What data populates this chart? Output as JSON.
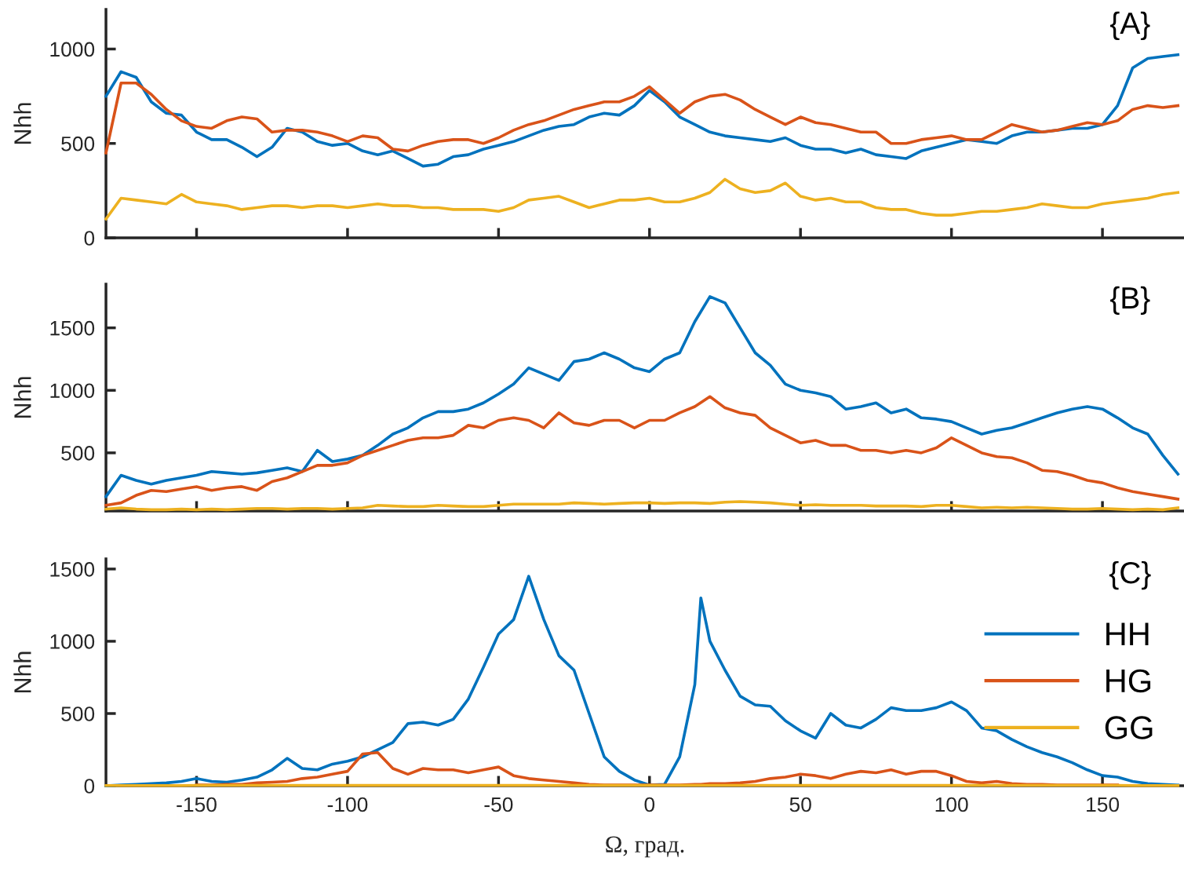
{
  "chart_data": [
    {
      "type": "line",
      "ylabel": "Nhh",
      "annotations": [
        "{A}"
      ],
      "xlim": [
        -180,
        177
      ],
      "ylim": [
        0,
        1210
      ],
      "xticks": [
        -150,
        -100,
        -50,
        0,
        50,
        100,
        150
      ],
      "yticks": [
        0,
        500,
        1000
      ],
      "tick_labels": "y",
      "grid": false,
      "x": [
        -180,
        -175,
        -170,
        -165,
        -160,
        -155,
        -150,
        -145,
        -140,
        -135,
        -130,
        -125,
        -120,
        -115,
        -110,
        -105,
        -100,
        -95,
        -90,
        -85,
        -80,
        -75,
        -70,
        -65,
        -60,
        -55,
        -50,
        -45,
        -40,
        -35,
        -30,
        -25,
        -20,
        -15,
        -10,
        -5,
        0,
        5,
        10,
        15,
        20,
        25,
        30,
        35,
        40,
        45,
        50,
        55,
        60,
        65,
        70,
        75,
        80,
        85,
        90,
        95,
        100,
        105,
        110,
        115,
        120,
        125,
        130,
        135,
        140,
        145,
        150,
        155,
        160,
        165,
        170,
        175
      ],
      "series": [
        {
          "color": "#0072bd",
          "values": [
            750,
            880,
            850,
            720,
            660,
            650,
            560,
            520,
            520,
            480,
            430,
            480,
            580,
            560,
            510,
            490,
            500,
            460,
            440,
            460,
            420,
            380,
            390,
            430,
            440,
            470,
            490,
            510,
            540,
            570,
            590,
            600,
            640,
            660,
            650,
            700,
            780,
            720,
            640,
            600,
            560,
            540,
            530,
            520,
            510,
            530,
            490,
            470,
            470,
            450,
            470,
            440,
            430,
            420,
            460,
            480,
            500,
            520,
            510,
            500,
            540,
            560,
            560,
            570,
            580,
            580,
            600,
            700,
            900,
            950,
            960,
            970
          ]
        },
        {
          "color": "#d95319",
          "values": [
            450,
            820,
            820,
            760,
            680,
            620,
            590,
            580,
            620,
            640,
            630,
            560,
            570,
            570,
            560,
            540,
            510,
            540,
            530,
            470,
            460,
            490,
            510,
            520,
            520,
            500,
            530,
            570,
            600,
            620,
            650,
            680,
            700,
            720,
            720,
            750,
            800,
            730,
            660,
            720,
            750,
            760,
            730,
            680,
            640,
            600,
            640,
            610,
            600,
            580,
            560,
            560,
            500,
            500,
            520,
            530,
            540,
            520,
            520,
            560,
            600,
            580,
            560,
            570,
            590,
            610,
            600,
            620,
            680,
            700,
            690,
            700
          ]
        },
        {
          "color": "#edb120",
          "values": [
            100,
            210,
            200,
            190,
            180,
            230,
            190,
            180,
            170,
            150,
            160,
            170,
            170,
            160,
            170,
            170,
            160,
            170,
            180,
            170,
            170,
            160,
            160,
            150,
            150,
            150,
            140,
            160,
            200,
            210,
            220,
            190,
            160,
            180,
            200,
            200,
            210,
            190,
            190,
            210,
            240,
            310,
            260,
            240,
            250,
            290,
            220,
            200,
            210,
            190,
            190,
            160,
            150,
            150,
            130,
            120,
            120,
            130,
            140,
            140,
            150,
            160,
            180,
            170,
            160,
            160,
            180,
            190,
            200,
            210,
            230,
            240
          ]
        }
      ]
    },
    {
      "type": "line",
      "ylabel": "Nhh",
      "annotations": [
        "{B}"
      ],
      "xlim": [
        -180,
        177
      ],
      "ylim": [
        35,
        1850
      ],
      "xticks": [
        -150,
        -100,
        -50,
        0,
        50,
        100,
        150
      ],
      "yticks": [
        500,
        1000,
        1500
      ],
      "tick_labels": "y",
      "grid": false,
      "x": [
        -180,
        -175,
        -170,
        -165,
        -160,
        -155,
        -150,
        -145,
        -140,
        -135,
        -130,
        -125,
        -120,
        -115,
        -110,
        -105,
        -100,
        -95,
        -90,
        -85,
        -80,
        -75,
        -70,
        -65,
        -60,
        -55,
        -50,
        -45,
        -40,
        -35,
        -30,
        -25,
        -20,
        -15,
        -10,
        -5,
        0,
        5,
        10,
        15,
        20,
        25,
        30,
        35,
        40,
        45,
        50,
        55,
        60,
        65,
        70,
        75,
        80,
        85,
        90,
        95,
        100,
        105,
        110,
        115,
        120,
        125,
        130,
        135,
        140,
        145,
        150,
        155,
        160,
        165,
        170,
        175
      ],
      "series": [
        {
          "color": "#0072bd",
          "values": [
            150,
            320,
            280,
            250,
            280,
            300,
            320,
            350,
            340,
            330,
            340,
            360,
            380,
            350,
            520,
            430,
            450,
            480,
            560,
            650,
            700,
            780,
            830,
            830,
            850,
            900,
            970,
            1050,
            1180,
            1130,
            1080,
            1230,
            1250,
            1300,
            1250,
            1180,
            1150,
            1250,
            1300,
            1550,
            1750,
            1700,
            1500,
            1300,
            1200,
            1050,
            1000,
            980,
            950,
            850,
            870,
            900,
            820,
            850,
            780,
            770,
            750,
            700,
            650,
            680,
            700,
            740,
            780,
            820,
            850,
            870,
            850,
            780,
            700,
            650,
            480,
            330
          ]
        },
        {
          "color": "#d95319",
          "values": [
            80,
            100,
            160,
            200,
            190,
            210,
            230,
            200,
            220,
            230,
            200,
            270,
            300,
            350,
            400,
            400,
            420,
            480,
            520,
            560,
            600,
            620,
            620,
            640,
            720,
            700,
            760,
            780,
            760,
            700,
            820,
            740,
            720,
            760,
            760,
            700,
            760,
            760,
            820,
            870,
            950,
            860,
            820,
            800,
            700,
            640,
            580,
            600,
            560,
            560,
            520,
            520,
            500,
            520,
            500,
            540,
            620,
            560,
            500,
            470,
            460,
            420,
            360,
            350,
            320,
            280,
            260,
            220,
            190,
            170,
            150,
            130
          ]
        },
        {
          "color": "#edb120",
          "values": [
            50,
            60,
            50,
            45,
            45,
            50,
            45,
            50,
            45,
            50,
            55,
            55,
            50,
            55,
            55,
            50,
            55,
            60,
            80,
            75,
            70,
            70,
            80,
            75,
            70,
            70,
            80,
            90,
            90,
            90,
            90,
            100,
            95,
            90,
            95,
            100,
            100,
            95,
            100,
            100,
            95,
            105,
            110,
            105,
            100,
            90,
            80,
            85,
            80,
            80,
            80,
            75,
            75,
            75,
            70,
            80,
            80,
            70,
            60,
            65,
            60,
            65,
            60,
            55,
            50,
            50,
            55,
            50,
            45,
            50,
            45,
            60
          ]
        }
      ]
    },
    {
      "type": "line",
      "ylabel": "Nhh",
      "xlabel": "Ω, град.",
      "annotations": [
        "{C}"
      ],
      "xlim": [
        -180,
        177
      ],
      "ylim": [
        0,
        1570
      ],
      "xticks": [
        -150,
        -100,
        -50,
        0,
        50,
        100,
        150
      ],
      "yticks": [
        0,
        500,
        1000,
        1500
      ],
      "grid": false,
      "legend": "right",
      "x": [
        -180,
        -175,
        -170,
        -165,
        -160,
        -155,
        -150,
        -145,
        -140,
        -135,
        -130,
        -125,
        -120,
        -115,
        -110,
        -105,
        -100,
        -95,
        -90,
        -85,
        -80,
        -75,
        -70,
        -65,
        -60,
        -55,
        -50,
        -45,
        -40,
        -35,
        -30,
        -25,
        -20,
        -15,
        -10,
        -5,
        0,
        5,
        10,
        15,
        17,
        20,
        25,
        30,
        35,
        40,
        45,
        50,
        55,
        60,
        65,
        70,
        75,
        80,
        85,
        90,
        95,
        100,
        105,
        110,
        115,
        120,
        125,
        130,
        135,
        140,
        145,
        150,
        155,
        160,
        165,
        170,
        175
      ],
      "series": [
        {
          "name": "HH",
          "color": "#0072bd",
          "values": [
            0,
            5,
            10,
            15,
            20,
            30,
            50,
            30,
            25,
            40,
            60,
            110,
            190,
            120,
            110,
            150,
            170,
            200,
            250,
            300,
            430,
            440,
            420,
            460,
            600,
            820,
            1050,
            1150,
            1450,
            1150,
            900,
            800,
            500,
            200,
            100,
            40,
            5,
            10,
            200,
            700,
            1300,
            1000,
            800,
            620,
            560,
            550,
            450,
            380,
            330,
            500,
            420,
            400,
            460,
            540,
            520,
            520,
            540,
            580,
            520,
            400,
            380,
            320,
            270,
            230,
            200,
            160,
            110,
            70,
            60,
            30,
            15,
            10,
            5
          ]
        },
        {
          "name": "HG",
          "color": "#d95319",
          "values": [
            null,
            null,
            null,
            null,
            null,
            null,
            5,
            5,
            10,
            10,
            20,
            25,
            30,
            50,
            60,
            80,
            100,
            220,
            230,
            120,
            80,
            120,
            110,
            110,
            90,
            110,
            130,
            70,
            50,
            40,
            30,
            20,
            10,
            5,
            5,
            5,
            5,
            5,
            5,
            10,
            10,
            15,
            15,
            20,
            30,
            50,
            60,
            80,
            70,
            50,
            80,
            100,
            90,
            110,
            80,
            100,
            100,
            70,
            30,
            20,
            30,
            15,
            10,
            10,
            5,
            5,
            5,
            5,
            5,
            null,
            null,
            null,
            null
          ]
        },
        {
          "name": "GG",
          "color": "#edb120",
          "values": [
            2,
            2,
            2,
            2,
            2,
            2,
            3,
            3,
            3,
            3,
            3,
            3,
            3,
            3,
            3,
            3,
            3,
            3,
            3,
            3,
            3,
            3,
            3,
            3,
            3,
            3,
            3,
            3,
            3,
            3,
            3,
            3,
            3,
            3,
            3,
            3,
            3,
            3,
            3,
            3,
            3,
            3,
            3,
            3,
            3,
            3,
            3,
            3,
            3,
            3,
            3,
            3,
            3,
            3,
            3,
            3,
            3,
            3,
            3,
            3,
            3,
            3,
            3,
            3,
            3,
            3,
            3,
            3,
            3,
            2,
            2,
            2,
            2
          ]
        }
      ]
    }
  ]
}
